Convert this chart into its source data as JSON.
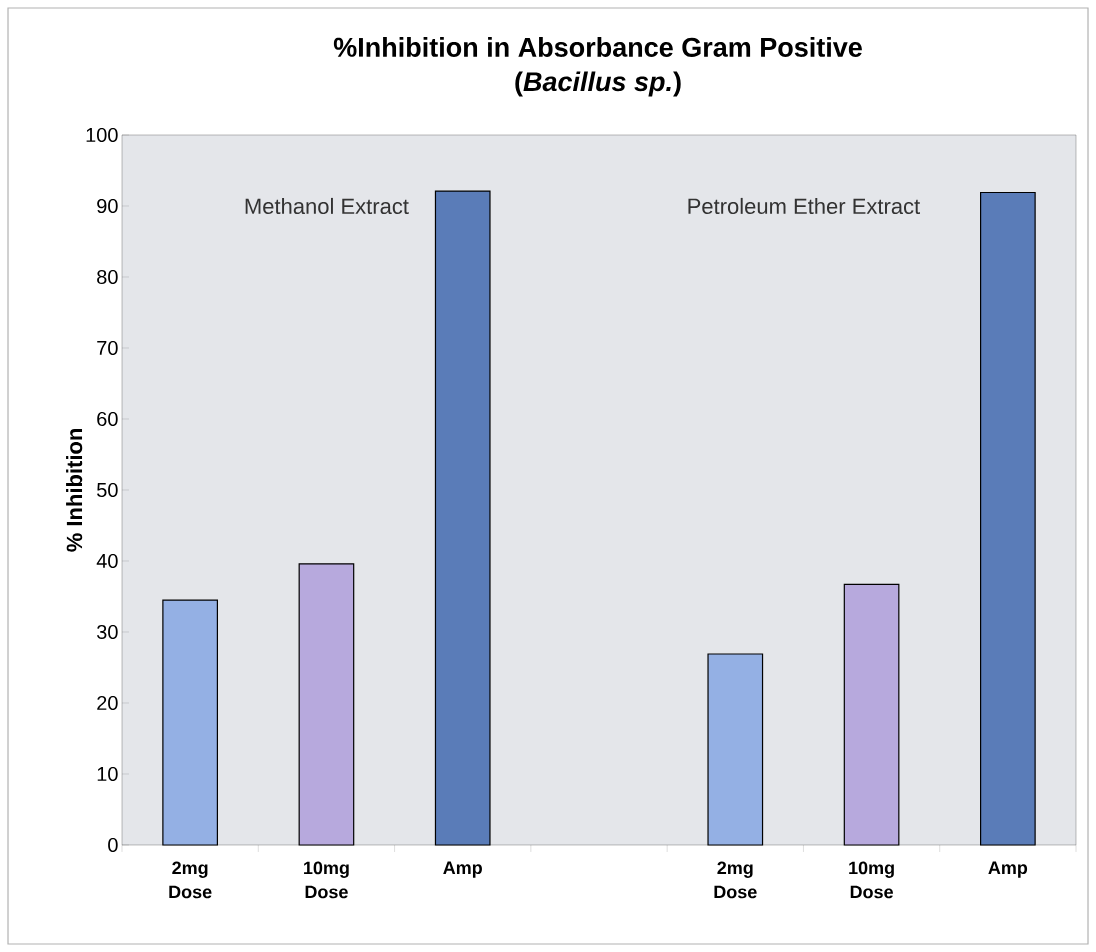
{
  "chart_data": {
    "type": "bar",
    "title": "%Inhibition in Absorbance Gram Positive",
    "subtitle": "(*Bacillus sp.*)",
    "ylabel": "% Inhibition",
    "categories": [
      "2mg Dose",
      "10mg Dose",
      "Amp",
      null,
      "2mg Dose",
      "10mg Dose",
      "Amp"
    ],
    "values": [
      34.5,
      39.6,
      92.1,
      null,
      26.9,
      36.7,
      91.9
    ],
    "colors": [
      "#94b0e4",
      "#b7a9dd",
      "#5a7cb8",
      "#94b0e4",
      "#94b0e4",
      "#b7a9dd",
      "#5a7cb8"
    ],
    "annotations": [
      "Methanol Extract",
      "Petroleum Ether Extract"
    ],
    "ylim": [
      0,
      100
    ],
    "yticks": [
      0,
      10,
      20,
      30,
      40,
      50,
      60,
      70,
      80,
      90,
      100
    ]
  }
}
